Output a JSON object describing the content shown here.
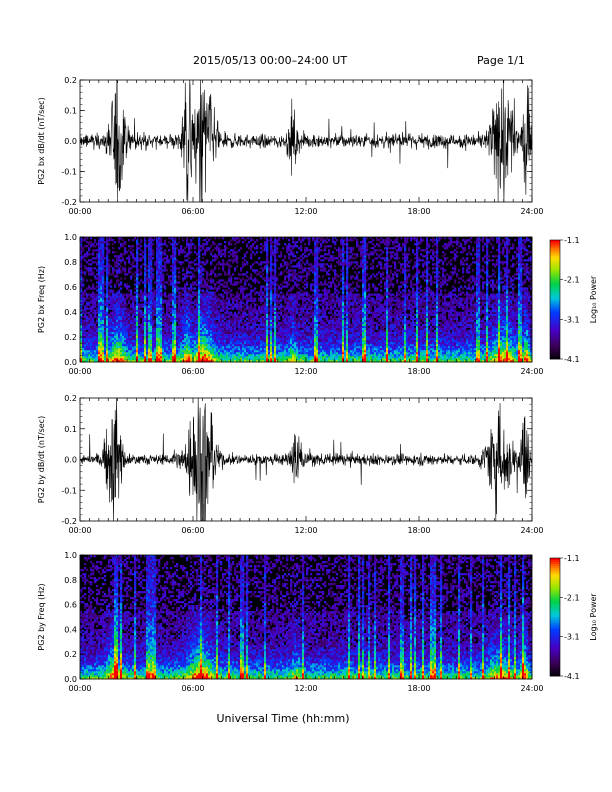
{
  "header": {
    "title": "2015/05/13  00:00–24:00 UT",
    "page": "Page 1/1"
  },
  "xlabel": "Universal Time (hh:mm)",
  "x_ticks": [
    "00:00",
    "06:00",
    "12:00",
    "18:00",
    "24:00"
  ],
  "colorbar_label": "Log₁₀ Power",
  "chart_data": [
    {
      "type": "line",
      "name": "bx-waveform",
      "ylabel": "PG2 bx dB/dt (nT/sec)",
      "ylim": [
        -0.2,
        0.2
      ],
      "y_ticks": [
        "0.2",
        "0.1",
        "0.0",
        "-0.1",
        "-0.2"
      ],
      "xlim_hours": [
        0,
        24
      ],
      "bursts": [
        {
          "center": 2.0,
          "width": 0.9,
          "amp": 0.2
        },
        {
          "center": 5.7,
          "width": 0.6,
          "amp": 0.2
        },
        {
          "center": 6.6,
          "width": 1.2,
          "amp": 0.22
        },
        {
          "center": 11.3,
          "width": 0.5,
          "amp": 0.1
        },
        {
          "center": 22.5,
          "width": 1.4,
          "amp": 0.18
        },
        {
          "center": 23.7,
          "width": 0.4,
          "amp": 0.2
        }
      ],
      "baseline_amp": 0.02
    },
    {
      "type": "heatmap",
      "name": "bx-spectrogram",
      "ylabel": "PG2 bx Freq (Hz)",
      "ylim": [
        0.0,
        1.0
      ],
      "y_ticks": [
        "1.0",
        "0.8",
        "0.6",
        "0.4",
        "0.2",
        "0.0"
      ],
      "colorbar": {
        "min": -4.1,
        "max": -1.1,
        "ticks": [
          "-1.1",
          "-2.1",
          "-3.1",
          "-4.1"
        ]
      }
    },
    {
      "type": "line",
      "name": "by-waveform",
      "ylabel": "PG2 by dB/dt (nT/sec)",
      "ylim": [
        -0.2,
        0.2
      ],
      "y_ticks": [
        "0.2",
        "0.1",
        "0.0",
        "-0.1",
        "-0.2"
      ],
      "xlim_hours": [
        0,
        24
      ],
      "bursts": [
        {
          "center": 1.8,
          "width": 1.0,
          "amp": 0.17
        },
        {
          "center": 6.4,
          "width": 1.6,
          "amp": 0.22
        },
        {
          "center": 11.5,
          "width": 0.6,
          "amp": 0.1
        },
        {
          "center": 22.3,
          "width": 1.5,
          "amp": 0.15
        },
        {
          "center": 23.6,
          "width": 0.5,
          "amp": 0.19
        }
      ],
      "baseline_amp": 0.015
    },
    {
      "type": "heatmap",
      "name": "by-spectrogram",
      "ylabel": "PG2 by Freq (Hz)",
      "ylim": [
        0.0,
        1.0
      ],
      "y_ticks": [
        "1.0",
        "0.8",
        "0.6",
        "0.4",
        "0.2",
        "0.0"
      ],
      "colorbar": {
        "min": -4.1,
        "max": -1.1,
        "ticks": [
          "-1.1",
          "-2.1",
          "-3.1",
          "-4.1"
        ]
      }
    }
  ],
  "colors": {
    "line": "#000000",
    "background": "#ffffff"
  }
}
